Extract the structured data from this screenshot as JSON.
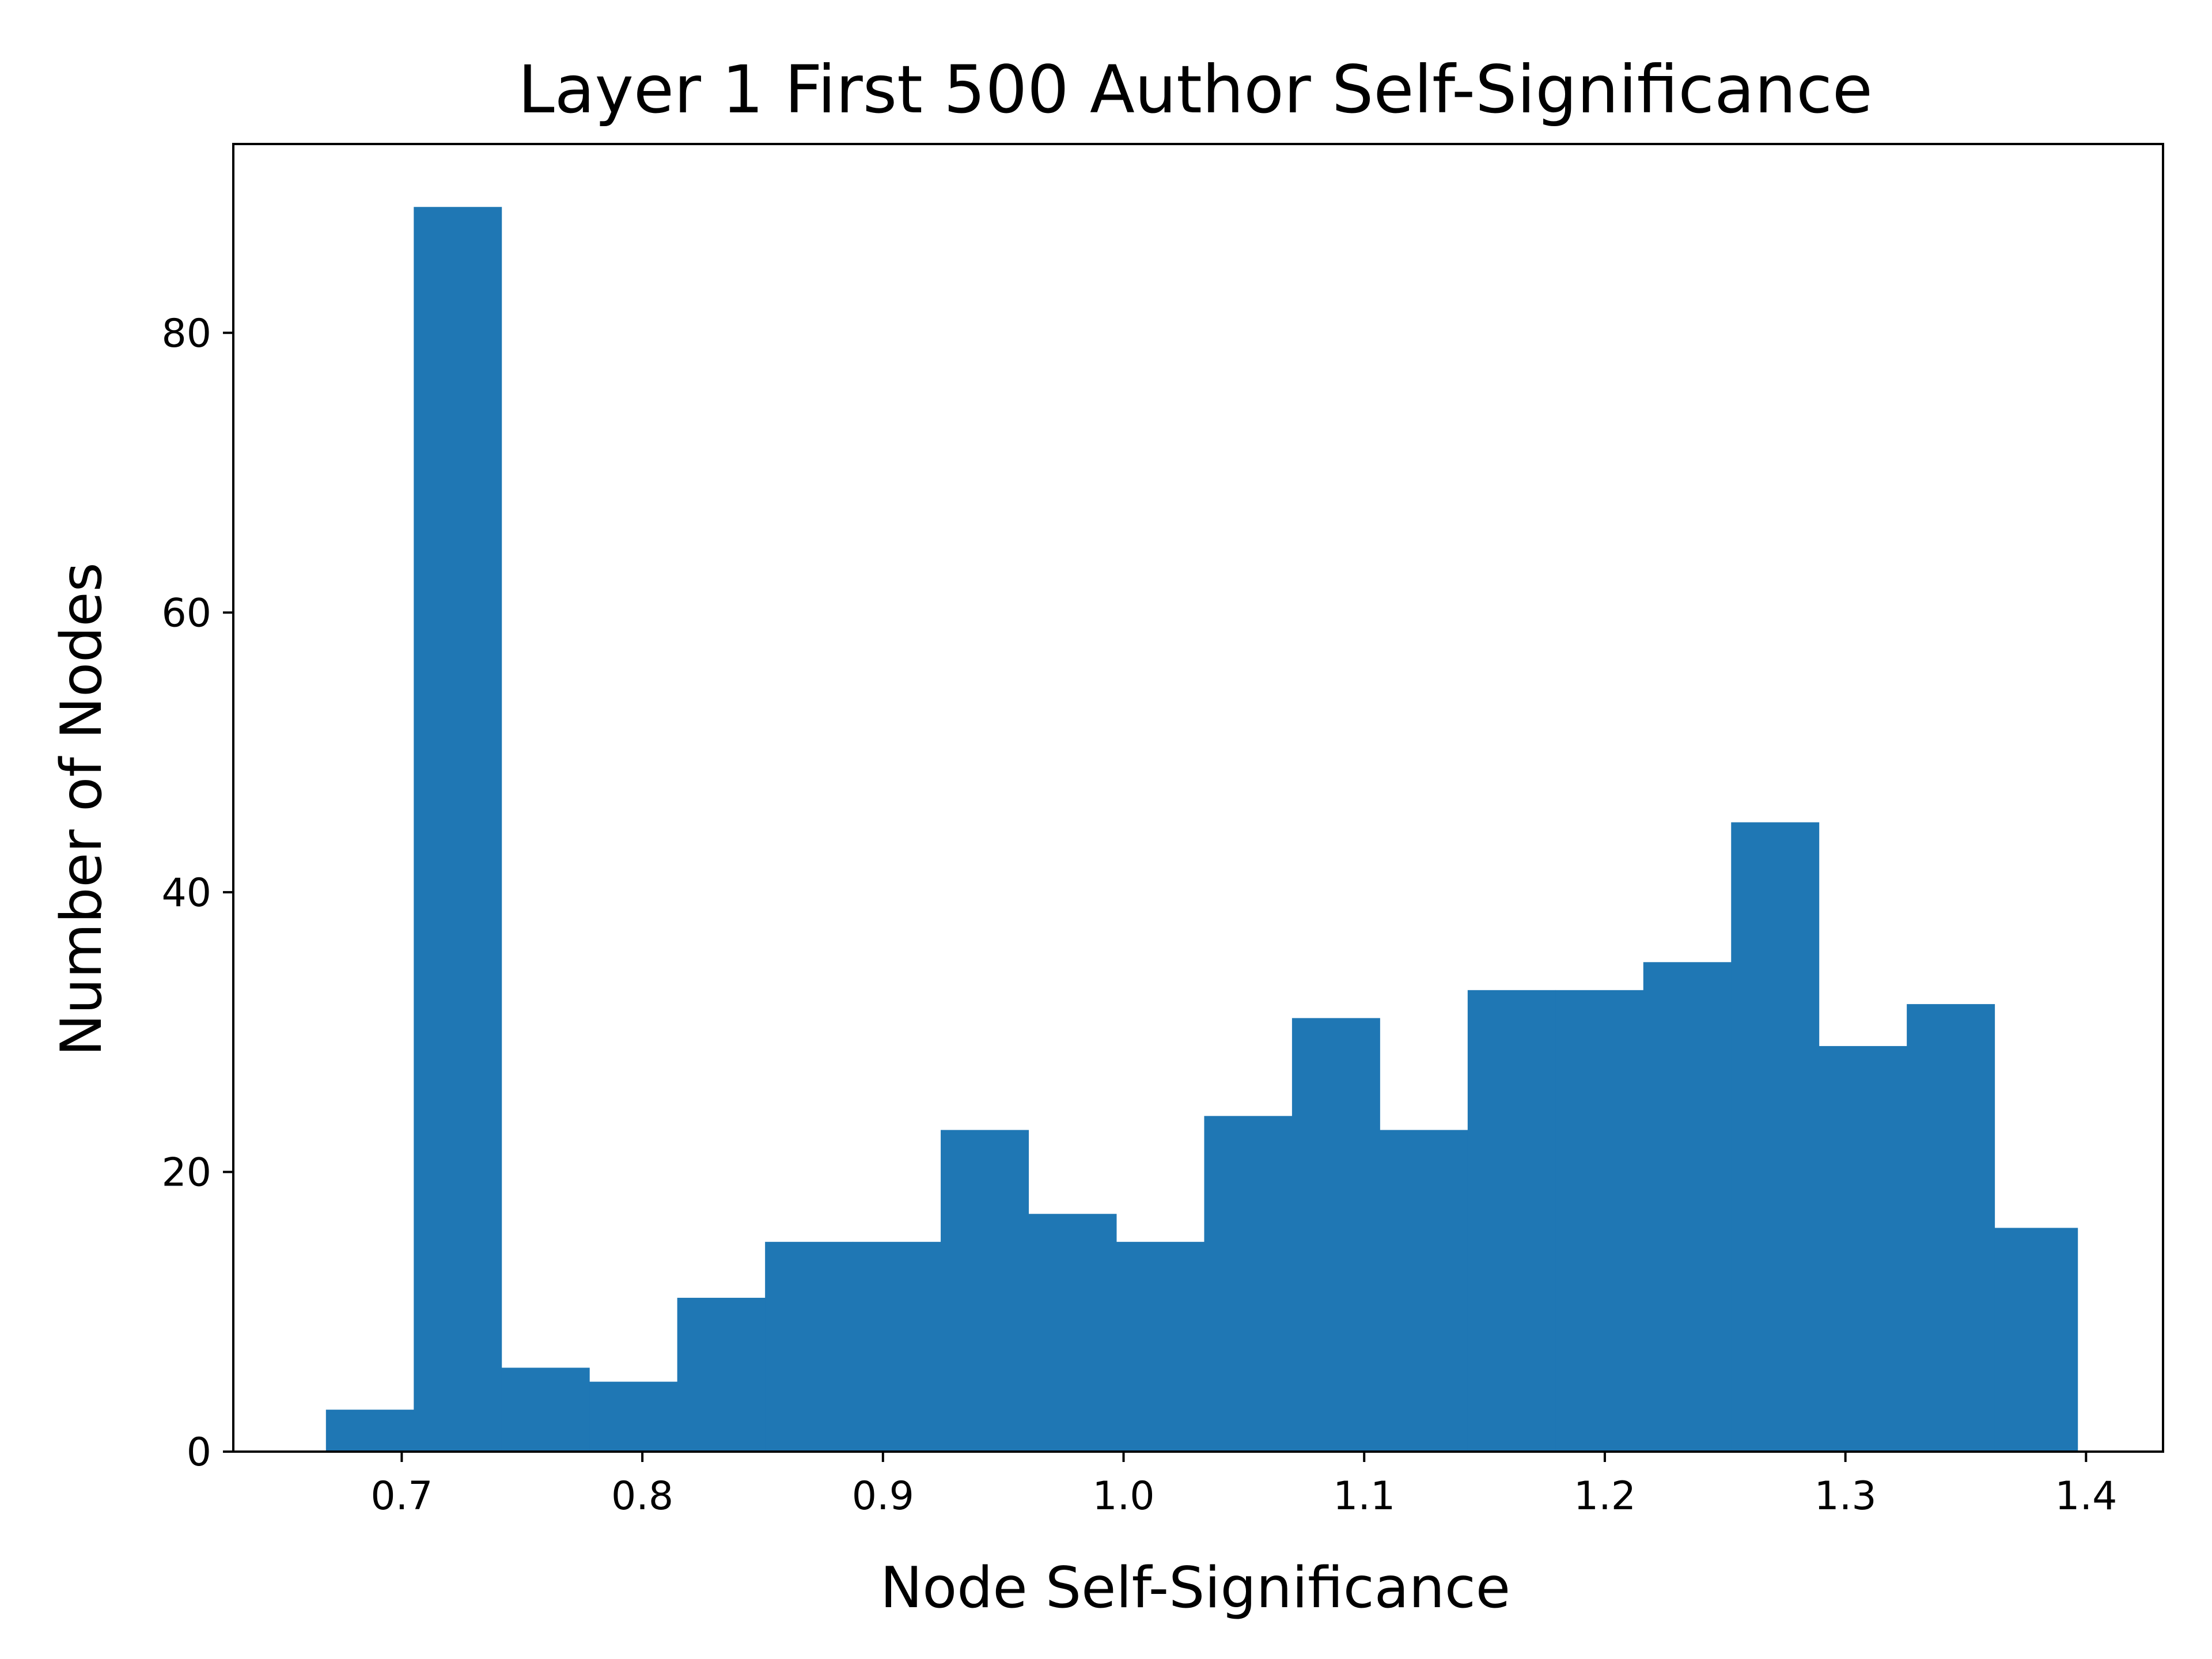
{
  "chart_data": {
    "type": "bar",
    "title": "Layer 1 First 500 Author Self-Significance",
    "xlabel": "Node Self-Significance",
    "ylabel": "Number of Nodes",
    "xlim": [
      0.63,
      1.432
    ],
    "ylim": [
      0,
      93.5
    ],
    "xticks": [
      0.7,
      0.8,
      0.9,
      1.0,
      1.1,
      1.2,
      1.3,
      1.4
    ],
    "xtick_labels": [
      "0.7",
      "0.8",
      "0.9",
      "1.0",
      "1.1",
      "1.2",
      "1.3",
      "1.4"
    ],
    "yticks": [
      0,
      20,
      40,
      60,
      80
    ],
    "ytick_labels": [
      "0",
      "20",
      "40",
      "60",
      "80"
    ],
    "bin_edges": [
      0.6685,
      0.705,
      0.7415,
      0.778,
      0.8145,
      0.851,
      0.8875,
      0.924,
      0.9605,
      0.997,
      1.0335,
      1.07,
      1.1065,
      1.143,
      1.1795,
      1.216,
      1.2525,
      1.289,
      1.3255,
      1.362,
      1.3965
    ],
    "values": [
      3,
      89,
      6,
      5,
      11,
      15,
      15,
      23,
      17,
      15,
      24,
      31,
      23,
      33,
      33,
      35,
      45,
      29,
      32,
      16
    ],
    "bar_color": "#1f77b4",
    "grid": false,
    "legend": "none"
  }
}
